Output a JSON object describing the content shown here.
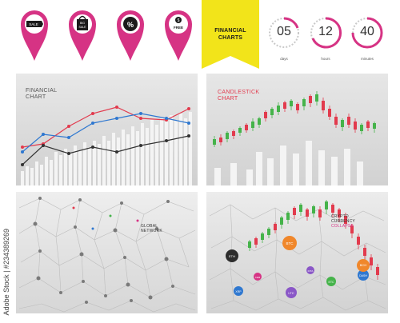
{
  "pins": [
    {
      "name": "sale-tag-pin",
      "label": "SALE"
    },
    {
      "name": "big-sale-bag-pin",
      "label": "BIG SALE"
    },
    {
      "name": "percent-pin",
      "label": "%"
    },
    {
      "name": "money-free-pin",
      "label": "FREE"
    }
  ],
  "ribbon": {
    "line1": "FINANCIAL",
    "line2": "CHARTS",
    "color": "#f2e41a"
  },
  "timers": [
    {
      "value": "05",
      "unit": "days"
    },
    {
      "value": "12",
      "unit": "hours"
    },
    {
      "value": "40",
      "unit": "minutes"
    }
  ],
  "cards": {
    "financial": {
      "line1": "FINANCIAL",
      "line2": "CHART"
    },
    "candlestick": {
      "line1": "CANDLESTICK",
      "line2": "CHART"
    },
    "network": {
      "line1": "GLOBAL",
      "line2": "NETWORK"
    },
    "crypto": {
      "line1": "CRYPTO",
      "line2": "CURRENCY",
      "line3": "COLLAPSE"
    }
  },
  "coins": [
    "ETH",
    "BTC",
    "XRP",
    "LTC",
    "DASH",
    "BCH",
    "ETC",
    "XEM",
    "IOTA"
  ],
  "watermark": "Adobe Stock | #234389269",
  "colors": {
    "pink": "#d63384",
    "red": "#e23a4d",
    "blue": "#2f78d0",
    "green": "#45b34a",
    "orange": "#f0872b",
    "purple": "#8a57c7"
  }
}
